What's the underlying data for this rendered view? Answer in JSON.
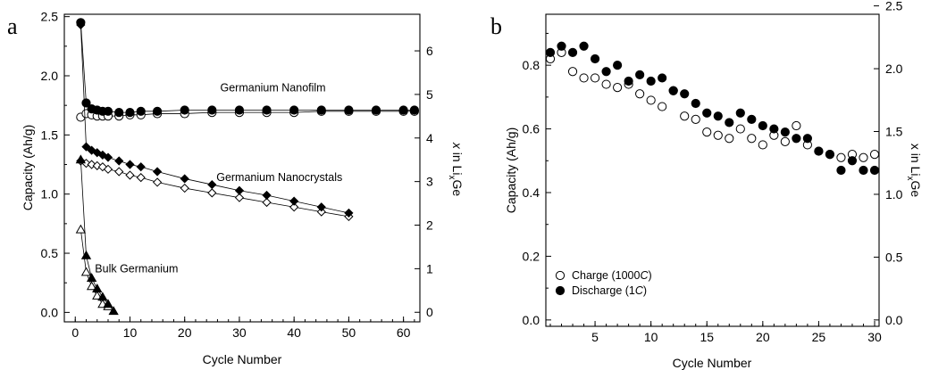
{
  "chart_data": [
    {
      "panel": "a",
      "type": "scatter",
      "xlabel": "Cycle Number",
      "ylabel": "Capacity (Ah/g)",
      "y2label": {
        "var": "x",
        "pre": " in Li",
        "sub": "x",
        "post": "Ge"
      },
      "xlim": [
        -2,
        63
      ],
      "ylim": [
        -0.08,
        2.52
      ],
      "y2lim": [
        -0.22,
        6.84
      ],
      "xticks": [
        0,
        10,
        20,
        30,
        40,
        50,
        60
      ],
      "yticks": [
        0.0,
        0.5,
        1.0,
        1.5,
        2.0,
        2.5
      ],
      "y2ticks": [
        0,
        1,
        2,
        3,
        4,
        5,
        6
      ],
      "series": [
        {
          "name": "Germanium Nanofilm",
          "marker": "circle",
          "label_x": 26.5,
          "label_y": 1.87,
          "filled": {
            "x": [
              1,
              2,
              3,
              4,
              5,
              6,
              8,
              10,
              12,
              15,
              20,
              25,
              30,
              35,
              40,
              45,
              50,
              55,
              60,
              62
            ],
            "y": [
              2.45,
              1.77,
              1.72,
              1.71,
              1.7,
              1.7,
              1.69,
              1.69,
              1.7,
              1.7,
              1.71,
              1.71,
              1.71,
              1.71,
              1.71,
              1.71,
              1.71,
              1.71,
              1.71,
              1.71
            ]
          },
          "open": {
            "x": [
              1,
              2,
              3,
              4,
              5,
              6,
              8,
              10,
              12,
              15,
              20,
              25,
              30,
              35,
              40,
              45,
              50,
              55,
              60,
              62
            ],
            "y": [
              1.65,
              1.68,
              1.67,
              1.66,
              1.66,
              1.66,
              1.66,
              1.67,
              1.67,
              1.68,
              1.68,
              1.69,
              1.69,
              1.69,
              1.69,
              1.7,
              1.7,
              1.7,
              1.7,
              1.7
            ]
          }
        },
        {
          "name": "Germanium Nanocrystals",
          "marker": "diamond",
          "label_x": 25.8,
          "label_y": 1.11,
          "filled": {
            "x": [
              1,
              2,
              3,
              4,
              5,
              6,
              8,
              10,
              12,
              15,
              20,
              25,
              30,
              35,
              40,
              45,
              50
            ],
            "y": [
              2.43,
              1.4,
              1.37,
              1.35,
              1.33,
              1.31,
              1.28,
              1.25,
              1.23,
              1.19,
              1.13,
              1.08,
              1.03,
              0.99,
              0.94,
              0.89,
              0.84
            ]
          },
          "open": {
            "x": [
              1,
              2,
              3,
              4,
              5,
              6,
              8,
              10,
              12,
              15,
              20,
              25,
              30,
              35,
              40,
              45,
              50
            ],
            "y": [
              1.28,
              1.26,
              1.25,
              1.24,
              1.23,
              1.21,
              1.19,
              1.16,
              1.14,
              1.1,
              1.05,
              1.01,
              0.97,
              0.93,
              0.89,
              0.85,
              0.81
            ]
          }
        },
        {
          "name": "Bulk Germanium",
          "marker": "triangle",
          "label_x": 3.6,
          "label_y": 0.34,
          "filled": {
            "x": [
              1,
              2,
              3,
              4,
              5,
              6,
              7
            ],
            "y": [
              1.29,
              0.48,
              0.29,
              0.2,
              0.13,
              0.07,
              0.01
            ]
          },
          "open": {
            "x": [
              1,
              2,
              3,
              4,
              5,
              6
            ],
            "y": [
              0.7,
              0.34,
              0.22,
              0.14,
              0.07,
              0.05
            ]
          }
        }
      ]
    },
    {
      "panel": "b",
      "type": "scatter",
      "xlabel": "Cycle Number",
      "ylabel": "Capacity (Ah/g)",
      "y2label": {
        "var": "",
        "pre": "x in Li",
        "sub": "x",
        "post": "Ge"
      },
      "xlim": [
        0.6,
        30.4
      ],
      "ylim": [
        -0.02,
        0.96
      ],
      "y2lim": [
        -0.0507,
        2.4333
      ],
      "xticks": [
        5,
        10,
        15,
        20,
        25,
        30
      ],
      "yticks": [
        0.0,
        0.2,
        0.4,
        0.6,
        0.8
      ],
      "y2ticks": [
        0.0,
        0.5,
        1.0,
        1.5,
        2.0,
        2.5
      ],
      "legend_position": "bottom-left",
      "series": [
        {
          "name_parts": [
            "Charge (1000",
            "C",
            ")"
          ],
          "marker": "open-circle",
          "x": [
            1,
            2,
            3,
            4,
            5,
            6,
            7,
            8,
            9,
            10,
            11,
            12,
            13,
            14,
            15,
            16,
            17,
            18,
            19,
            20,
            21,
            22,
            23,
            24,
            25,
            26,
            27,
            28,
            29,
            30
          ],
          "y": [
            0.82,
            0.84,
            0.78,
            0.76,
            0.76,
            0.74,
            0.73,
            0.74,
            0.71,
            0.69,
            0.67,
            0.72,
            0.64,
            0.63,
            0.59,
            0.58,
            0.57,
            0.6,
            0.57,
            0.55,
            0.58,
            0.56,
            0.61,
            0.55,
            0.53,
            0.52,
            0.51,
            0.52,
            0.51,
            0.52
          ]
        },
        {
          "name_parts": [
            "Discharge (1",
            "C",
            ")"
          ],
          "marker": "filled-circle",
          "x": [
            1,
            2,
            3,
            4,
            5,
            6,
            7,
            8,
            9,
            10,
            11,
            12,
            13,
            14,
            15,
            16,
            17,
            18,
            19,
            20,
            21,
            22,
            23,
            24,
            25,
            26,
            27,
            28,
            29,
            30
          ],
          "y": [
            0.84,
            0.86,
            0.84,
            0.86,
            0.82,
            0.78,
            0.8,
            0.75,
            0.77,
            0.75,
            0.76,
            0.72,
            0.71,
            0.68,
            0.65,
            0.64,
            0.62,
            0.65,
            0.63,
            0.61,
            0.6,
            0.59,
            0.57,
            0.57,
            0.53,
            0.52,
            0.47,
            0.5,
            0.47,
            0.47
          ]
        }
      ]
    }
  ]
}
